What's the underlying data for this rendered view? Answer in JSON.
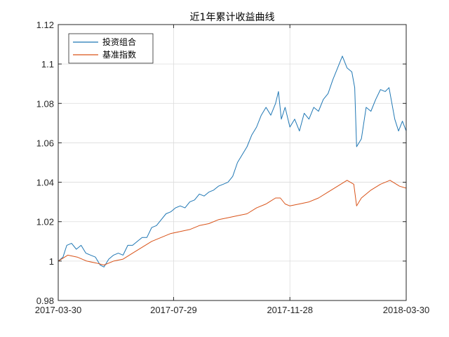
{
  "chart_data": {
    "type": "line",
    "title": "近1年累计收益曲线",
    "xlabel": "",
    "ylabel": "",
    "x_ticks": [
      "2017-03-30",
      "2017-07-29",
      "2017-11-28",
      "2018-03-30"
    ],
    "y_ticks": [
      "0.98",
      "1",
      "1.02",
      "1.04",
      "1.06",
      "1.08",
      "1.1",
      "1.12"
    ],
    "ylim": [
      0.98,
      1.12
    ],
    "xlim": [
      "2017-03-30",
      "2018-03-30"
    ],
    "grid": true,
    "legend_position": "top-left",
    "series": [
      {
        "name": "投资组合",
        "color": "#1f77b4",
        "points": [
          [
            "2017-03-30",
            1.0
          ],
          [
            "2017-04-04",
            1.002
          ],
          [
            "2017-04-08",
            1.008
          ],
          [
            "2017-04-13",
            1.009
          ],
          [
            "2017-04-18",
            1.006
          ],
          [
            "2017-04-23",
            1.008
          ],
          [
            "2017-04-28",
            1.004
          ],
          [
            "2017-05-03",
            1.003
          ],
          [
            "2017-05-08",
            1.002
          ],
          [
            "2017-05-13",
            0.998
          ],
          [
            "2017-05-17",
            0.997
          ],
          [
            "2017-05-22",
            1.001
          ],
          [
            "2017-05-27",
            1.003
          ],
          [
            "2017-06-01",
            1.004
          ],
          [
            "2017-06-06",
            1.003
          ],
          [
            "2017-06-11",
            1.008
          ],
          [
            "2017-06-16",
            1.008
          ],
          [
            "2017-06-21",
            1.01
          ],
          [
            "2017-06-26",
            1.012
          ],
          [
            "2017-07-01",
            1.012
          ],
          [
            "2017-07-06",
            1.017
          ],
          [
            "2017-07-11",
            1.018
          ],
          [
            "2017-07-16",
            1.021
          ],
          [
            "2017-07-21",
            1.024
          ],
          [
            "2017-07-26",
            1.025
          ],
          [
            "2017-07-31",
            1.027
          ],
          [
            "2017-08-05",
            1.028
          ],
          [
            "2017-08-10",
            1.027
          ],
          [
            "2017-08-15",
            1.03
          ],
          [
            "2017-08-20",
            1.031
          ],
          [
            "2017-08-25",
            1.034
          ],
          [
            "2017-08-30",
            1.033
          ],
          [
            "2017-09-04",
            1.035
          ],
          [
            "2017-09-09",
            1.036
          ],
          [
            "2017-09-14",
            1.038
          ],
          [
            "2017-09-19",
            1.039
          ],
          [
            "2017-09-24",
            1.04
          ],
          [
            "2017-09-29",
            1.043
          ],
          [
            "2017-10-04",
            1.05
          ],
          [
            "2017-10-09",
            1.054
          ],
          [
            "2017-10-14",
            1.058
          ],
          [
            "2017-10-19",
            1.064
          ],
          [
            "2017-10-24",
            1.068
          ],
          [
            "2017-10-29",
            1.074
          ],
          [
            "2017-11-03",
            1.078
          ],
          [
            "2017-11-08",
            1.074
          ],
          [
            "2017-11-13",
            1.08
          ],
          [
            "2017-11-16",
            1.086
          ],
          [
            "2017-11-19",
            1.072
          ],
          [
            "2017-11-23",
            1.078
          ],
          [
            "2017-11-28",
            1.068
          ],
          [
            "2017-12-03",
            1.072
          ],
          [
            "2017-12-08",
            1.066
          ],
          [
            "2017-12-13",
            1.075
          ],
          [
            "2017-12-18",
            1.072
          ],
          [
            "2017-12-23",
            1.078
          ],
          [
            "2017-12-28",
            1.076
          ],
          [
            "2018-01-02",
            1.082
          ],
          [
            "2018-01-07",
            1.085
          ],
          [
            "2018-01-12",
            1.092
          ],
          [
            "2018-01-17",
            1.098
          ],
          [
            "2018-01-22",
            1.104
          ],
          [
            "2018-01-27",
            1.098
          ],
          [
            "2018-02-01",
            1.096
          ],
          [
            "2018-02-04",
            1.088
          ],
          [
            "2018-02-06",
            1.058
          ],
          [
            "2018-02-11",
            1.062
          ],
          [
            "2018-02-16",
            1.078
          ],
          [
            "2018-02-21",
            1.076
          ],
          [
            "2018-02-26",
            1.082
          ],
          [
            "2018-03-03",
            1.087
          ],
          [
            "2018-03-08",
            1.086
          ],
          [
            "2018-03-12",
            1.088
          ],
          [
            "2018-03-15",
            1.08
          ],
          [
            "2018-03-18",
            1.072
          ],
          [
            "2018-03-22",
            1.066
          ],
          [
            "2018-03-26",
            1.071
          ],
          [
            "2018-03-30",
            1.066
          ]
        ]
      },
      {
        "name": "基准指数",
        "color": "#d95319",
        "points": [
          [
            "2017-03-30",
            1.0
          ],
          [
            "2017-04-09",
            1.003
          ],
          [
            "2017-04-19",
            1.002
          ],
          [
            "2017-04-29",
            1.0
          ],
          [
            "2017-05-09",
            0.999
          ],
          [
            "2017-05-17",
            0.998
          ],
          [
            "2017-05-27",
            1.0
          ],
          [
            "2017-06-06",
            1.001
          ],
          [
            "2017-06-16",
            1.004
          ],
          [
            "2017-06-26",
            1.007
          ],
          [
            "2017-07-06",
            1.01
          ],
          [
            "2017-07-16",
            1.012
          ],
          [
            "2017-07-26",
            1.014
          ],
          [
            "2017-08-05",
            1.015
          ],
          [
            "2017-08-15",
            1.016
          ],
          [
            "2017-08-25",
            1.018
          ],
          [
            "2017-09-04",
            1.019
          ],
          [
            "2017-09-14",
            1.021
          ],
          [
            "2017-09-24",
            1.022
          ],
          [
            "2017-10-04",
            1.023
          ],
          [
            "2017-10-14",
            1.024
          ],
          [
            "2017-10-24",
            1.027
          ],
          [
            "2017-11-03",
            1.029
          ],
          [
            "2017-11-13",
            1.032
          ],
          [
            "2017-11-18",
            1.032
          ],
          [
            "2017-11-23",
            1.029
          ],
          [
            "2017-11-28",
            1.028
          ],
          [
            "2017-12-08",
            1.029
          ],
          [
            "2017-12-18",
            1.03
          ],
          [
            "2017-12-28",
            1.032
          ],
          [
            "2018-01-07",
            1.035
          ],
          [
            "2018-01-17",
            1.038
          ],
          [
            "2018-01-27",
            1.041
          ],
          [
            "2018-02-03",
            1.039
          ],
          [
            "2018-02-06",
            1.028
          ],
          [
            "2018-02-11",
            1.032
          ],
          [
            "2018-02-21",
            1.036
          ],
          [
            "2018-03-03",
            1.039
          ],
          [
            "2018-03-13",
            1.041
          ],
          [
            "2018-03-23",
            1.038
          ],
          [
            "2018-03-30",
            1.037
          ]
        ]
      }
    ]
  }
}
